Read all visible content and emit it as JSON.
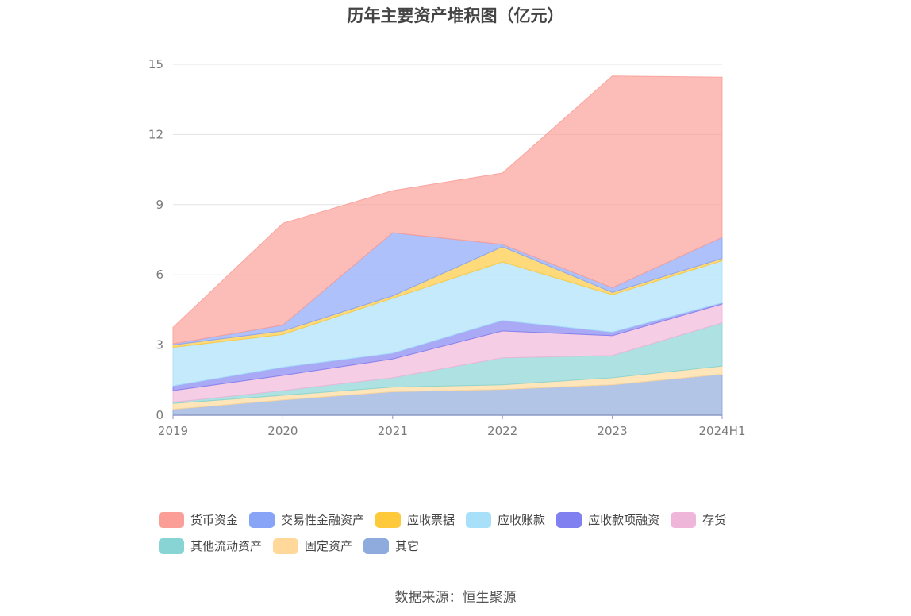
{
  "chart_data": {
    "type": "area",
    "stacked": true,
    "title": "历年主要资产堆积图（亿元）",
    "categories": [
      "2019",
      "2020",
      "2021",
      "2022",
      "2023",
      "2024H1"
    ],
    "y_ticks": [
      "0",
      "3",
      "6",
      "9",
      "12",
      "15"
    ],
    "ylim": [
      0,
      15
    ],
    "grid": true,
    "legend_position": "bottom",
    "series": [
      {
        "name": "其它",
        "color": "#8FAADC",
        "values": [
          0.25,
          0.65,
          1.0,
          1.1,
          1.3,
          1.75
        ]
      },
      {
        "name": "固定资产",
        "color": "#FFD89A",
        "values": [
          0.25,
          0.2,
          0.2,
          0.2,
          0.3,
          0.35
        ]
      },
      {
        "name": "其他流动资产",
        "color": "#88D4D4",
        "values": [
          0.05,
          0.2,
          0.4,
          1.15,
          0.95,
          1.85
        ]
      },
      {
        "name": "存货",
        "color": "#F0B6D9",
        "values": [
          0.5,
          0.65,
          0.8,
          1.15,
          0.85,
          0.8
        ]
      },
      {
        "name": "应收款项融资",
        "color": "#8080F0",
        "values": [
          0.2,
          0.35,
          0.25,
          0.45,
          0.15,
          0.05
        ]
      },
      {
        "name": "应收账款",
        "color": "#A8E0FA",
        "values": [
          1.65,
          1.4,
          2.35,
          2.5,
          1.6,
          1.8
        ]
      },
      {
        "name": "应收票据",
        "color": "#FFC93C",
        "values": [
          0.1,
          0.15,
          0.1,
          0.65,
          0.1,
          0.1
        ]
      },
      {
        "name": "交易性金融资产",
        "color": "#88A4F7",
        "values": [
          0.05,
          0.25,
          2.7,
          0.1,
          0.2,
          0.9
        ]
      },
      {
        "name": "货币资金",
        "color": "#FA9E97",
        "values": [
          0.7,
          4.35,
          1.8,
          3.05,
          9.05,
          6.85
        ]
      }
    ]
  },
  "legend": {
    "items": [
      {
        "label": "货币资金",
        "color": "#FA9E97"
      },
      {
        "label": "交易性金融资产",
        "color": "#88A4F7"
      },
      {
        "label": "应收票据",
        "color": "#FFC93C"
      },
      {
        "label": "应收账款",
        "color": "#A8E0FA"
      },
      {
        "label": "应收款项融资",
        "color": "#8080F0"
      },
      {
        "label": "存货",
        "color": "#F0B6D9"
      },
      {
        "label": "其他流动资产",
        "color": "#88D4D4"
      },
      {
        "label": "固定资产",
        "color": "#FFD89A"
      },
      {
        "label": "其它",
        "color": "#8FAADC"
      }
    ]
  },
  "source": "数据来源：恒生聚源"
}
